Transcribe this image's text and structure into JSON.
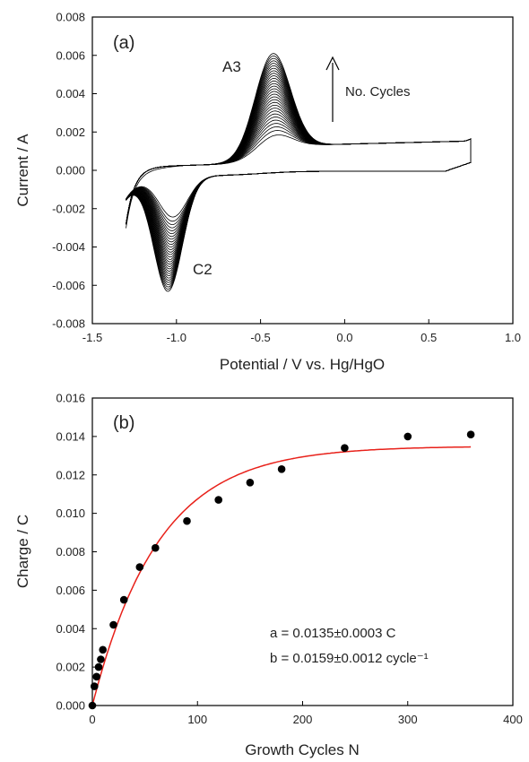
{
  "chart_data": [
    {
      "panel": "(a)",
      "type": "line",
      "xlabel": "Potential / V vs. Hg/HgO",
      "ylabel": "Current / A",
      "xlim": [
        -1.5,
        1.0
      ],
      "ylim": [
        -0.008,
        0.008
      ],
      "xticks": [
        "-1.5",
        "-1.0",
        "-0.5",
        "0.0",
        "0.5",
        "1.0"
      ],
      "yticks": [
        "-0.008",
        "-0.006",
        "-0.004",
        "-0.002",
        "0.000",
        "0.002",
        "0.004",
        "0.006",
        "0.008"
      ],
      "grid": false,
      "annotations": {
        "anodic_peak": "A3",
        "cathodic_peak": "C2",
        "arrow_label": "No. Cycles"
      },
      "cycle_count": 30,
      "first_cycle": {
        "anodic_peak": {
          "x": -0.43,
          "y": 0.0015
        },
        "cathodic_peak": {
          "x": -1.02,
          "y": -0.0023
        }
      },
      "last_cycle": {
        "anodic_peak": {
          "x": -0.43,
          "y": 0.0058
        },
        "cathodic_peak": {
          "x": -1.05,
          "y": -0.0065
        }
      },
      "potential_window": [
        -1.3,
        0.75
      ],
      "color": "#000000"
    },
    {
      "panel": "(b)",
      "type": "scatter",
      "xlabel": "Growth Cycles N",
      "ylabel": "Charge / C",
      "xlim": [
        0,
        400
      ],
      "ylim": [
        0,
        0.016
      ],
      "xticks": [
        "0",
        "100",
        "200",
        "300",
        "400"
      ],
      "yticks": [
        "0.000",
        "0.002",
        "0.004",
        "0.006",
        "0.008",
        "0.010",
        "0.012",
        "0.014",
        "0.016"
      ],
      "grid": false,
      "series": [
        {
          "type": "scatter",
          "color": "#000000",
          "points": [
            [
              0,
              0.0
            ],
            [
              2,
              0.001
            ],
            [
              4,
              0.0015
            ],
            [
              6,
              0.002
            ],
            [
              8,
              0.0024
            ],
            [
              10,
              0.0029
            ],
            [
              20,
              0.0042
            ],
            [
              30,
              0.0055
            ],
            [
              45,
              0.0072
            ],
            [
              60,
              0.0082
            ],
            [
              90,
              0.0096
            ],
            [
              120,
              0.0107
            ],
            [
              150,
              0.0116
            ],
            [
              180,
              0.0123
            ],
            [
              240,
              0.0134
            ],
            [
              300,
              0.014
            ],
            [
              360,
              0.0141
            ]
          ]
        },
        {
          "type": "line",
          "color": "#e8211a",
          "model": "y = a(1 - exp(-b x))",
          "a": 0.0135,
          "b": 0.0159,
          "x_range": [
            0,
            360
          ]
        }
      ],
      "fit_text": [
        "a = 0.0135±0.0003 C",
        "b = 0.0159±0.0012 cycle⁻¹"
      ]
    }
  ]
}
